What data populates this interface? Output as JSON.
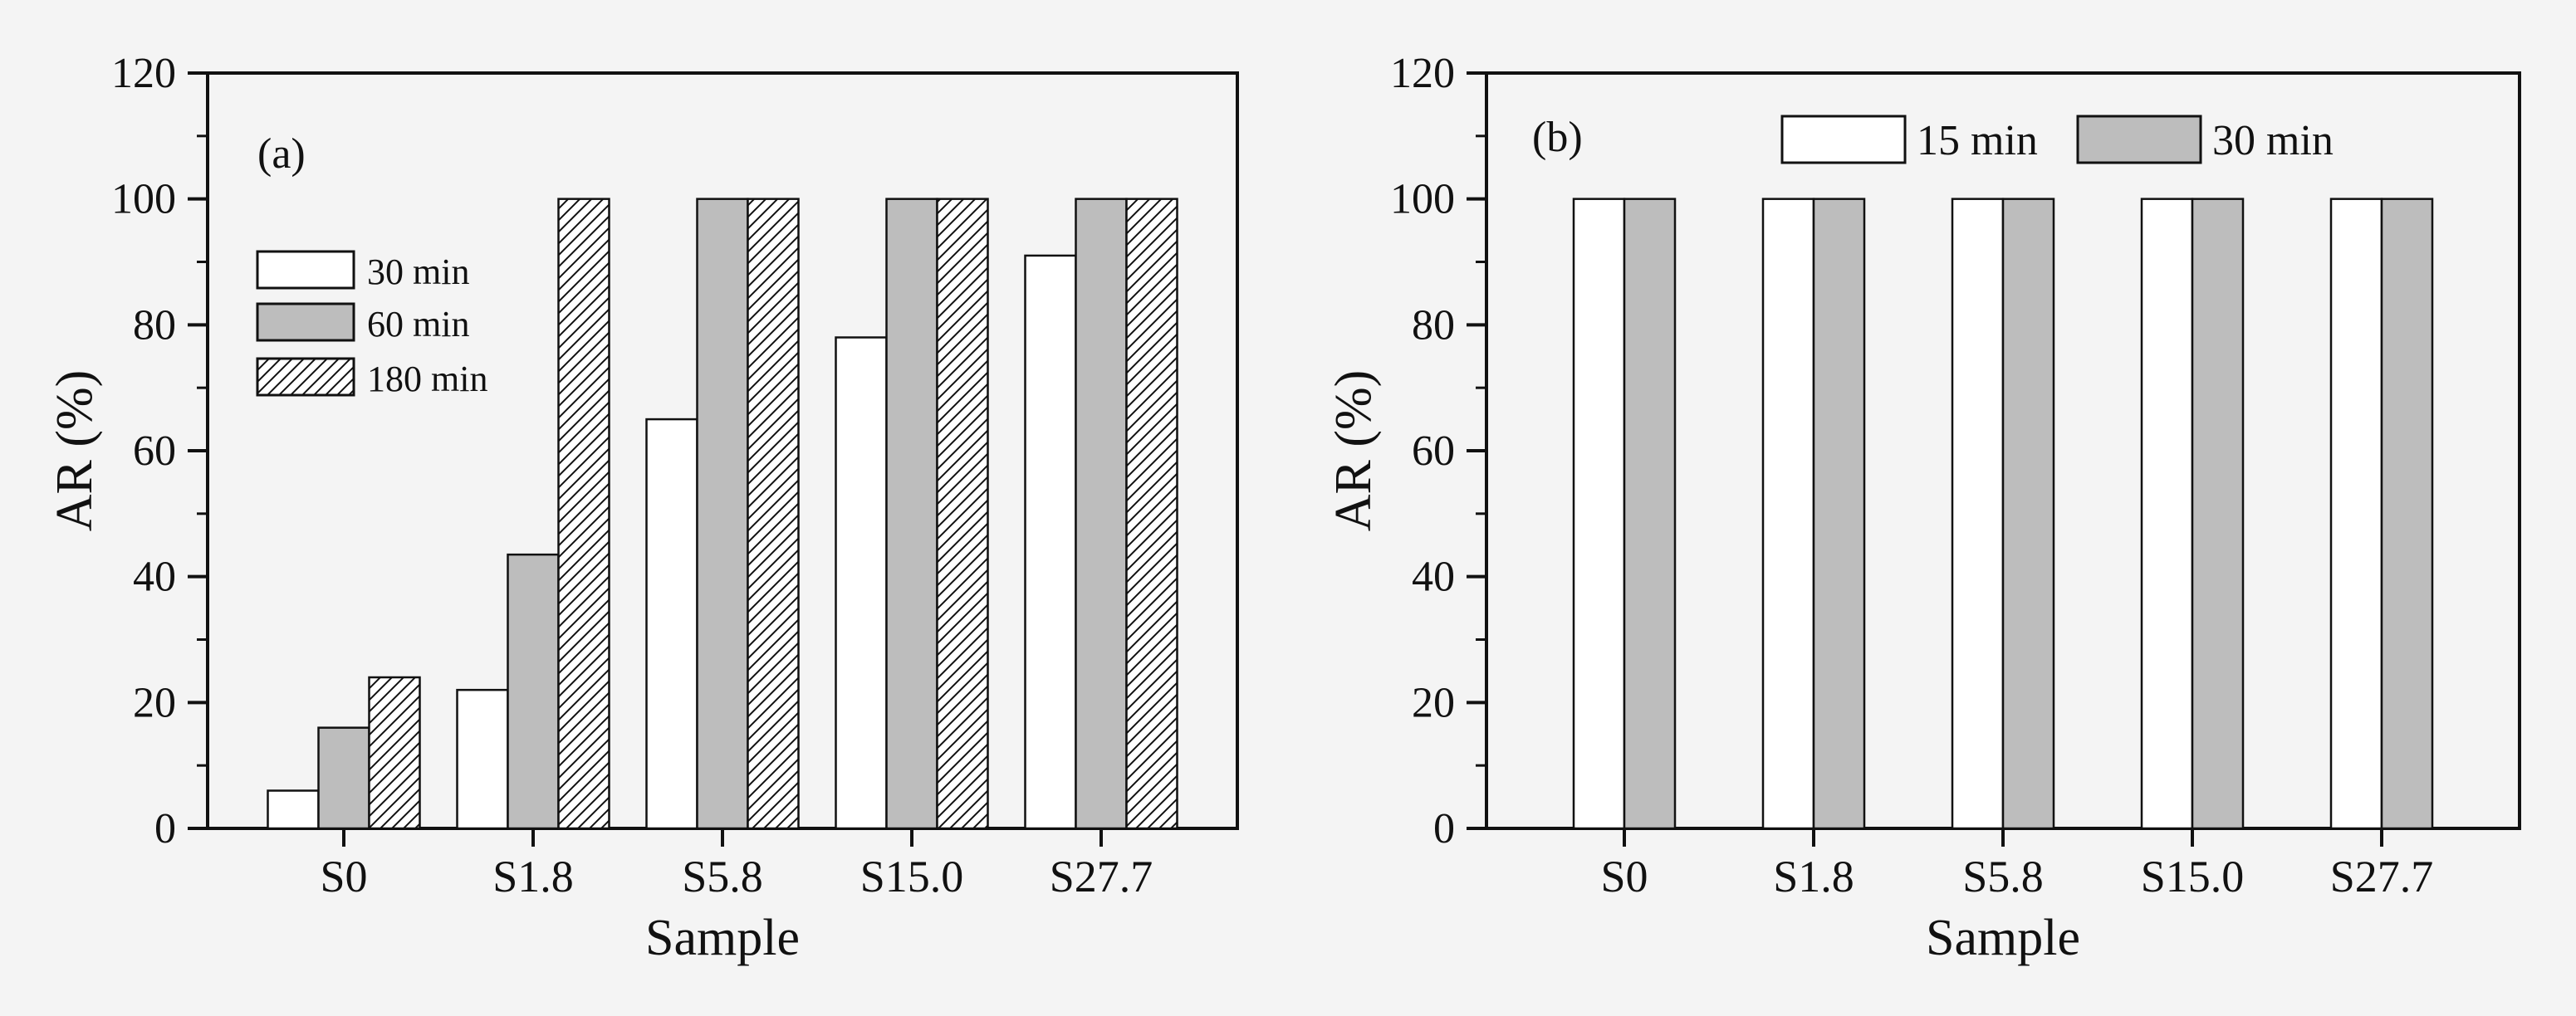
{
  "colors": {
    "background": "#f4f4f4",
    "axis": "#111111",
    "bar_white": "#ffffff",
    "bar_gray": "#bdbdbd",
    "bar_hatch": "#ffffff"
  },
  "chart_data": [
    {
      "type": "bar",
      "panel_label": "(a)",
      "xlabel": "Sample",
      "ylabel": "AR (%)",
      "ylim": [
        0,
        120
      ],
      "yticks": [
        "0",
        "20",
        "40",
        "60",
        "80",
        "100",
        "120"
      ],
      "categories": [
        "S0",
        "S1.8",
        "S5.8",
        "S15.0",
        "S27.7"
      ],
      "legend_position": "upper-left",
      "series": [
        {
          "name": "30 min",
          "fill": "white",
          "values": [
            6,
            22,
            65,
            78,
            91
          ]
        },
        {
          "name": "60 min",
          "fill": "gray",
          "values": [
            16,
            43.5,
            100,
            100,
            100
          ]
        },
        {
          "name": "180 min",
          "fill": "hatch",
          "values": [
            24,
            100,
            100,
            100,
            100
          ]
        }
      ]
    },
    {
      "type": "bar",
      "panel_label": "(b)",
      "xlabel": "Sample",
      "ylabel": "AR (%)",
      "ylim": [
        0,
        120
      ],
      "yticks": [
        "0",
        "20",
        "40",
        "60",
        "80",
        "100",
        "120"
      ],
      "categories": [
        "S0",
        "S1.8",
        "S5.8",
        "S15.0",
        "S27.7"
      ],
      "legend_position": "top",
      "series": [
        {
          "name": "15 min",
          "fill": "white",
          "values": [
            100,
            100,
            100,
            100,
            100
          ]
        },
        {
          "name": "30 min",
          "fill": "gray",
          "values": [
            100,
            100,
            100,
            100,
            100
          ]
        }
      ]
    }
  ]
}
